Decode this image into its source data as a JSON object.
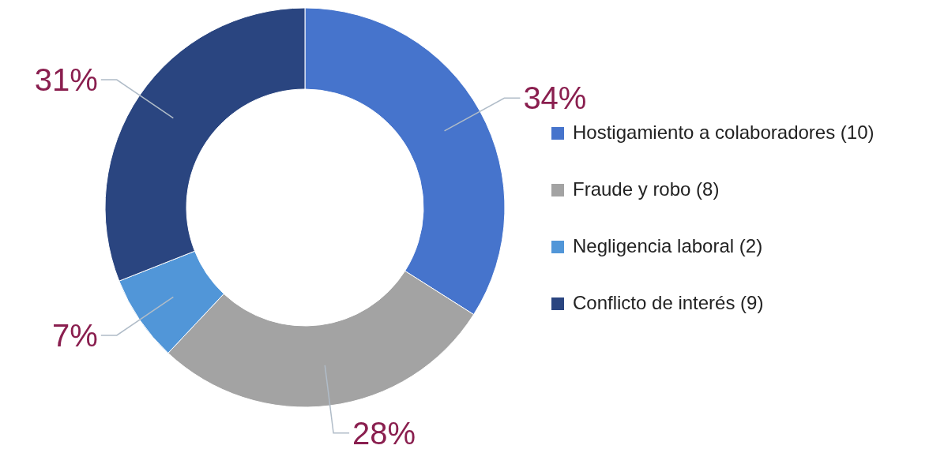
{
  "chart_data": {
    "type": "donut",
    "categories": [
      "Hostigamiento a colaboradores (10)",
      "Fraude y robo (8)",
      "Negligencia laboral (2)",
      "Conflicto de interés (9)"
    ],
    "values": [
      34,
      28,
      7,
      31
    ],
    "value_labels": [
      "34%",
      "28%",
      "7%",
      "31%"
    ],
    "colors": [
      "#4674cc",
      "#a3a3a3",
      "#5196d8",
      "#2a4580"
    ],
    "legend": "right"
  }
}
